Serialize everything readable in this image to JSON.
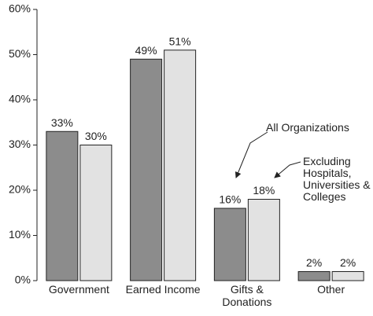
{
  "chart_data": {
    "type": "bar",
    "categories": [
      "Government",
      "Earned Income",
      "Gifts & Donations",
      "Other"
    ],
    "series": [
      {
        "name": "All Organizations",
        "color": "#8c8c8c",
        "values": [
          33,
          49,
          16,
          2
        ],
        "value_labels": [
          "33%",
          "49%",
          "16%",
          "2%"
        ]
      },
      {
        "name": "Excluding Hospitals, Universities & Colleges",
        "color": "#e2e2e2",
        "values": [
          30,
          51,
          18,
          2
        ],
        "value_labels": [
          "30%",
          "51%",
          "18%",
          "2%"
        ]
      }
    ],
    "ylim": [
      0,
      60
    ],
    "yticks": [
      {
        "value": 0,
        "label": "0%"
      },
      {
        "value": 10,
        "label": "10%"
      },
      {
        "value": 20,
        "label": "20%"
      },
      {
        "value": 30,
        "label": "30%"
      },
      {
        "value": 40,
        "label": "40%"
      },
      {
        "value": 50,
        "label": "50%"
      },
      {
        "value": 60,
        "label": "60%"
      }
    ],
    "grid": false
  }
}
